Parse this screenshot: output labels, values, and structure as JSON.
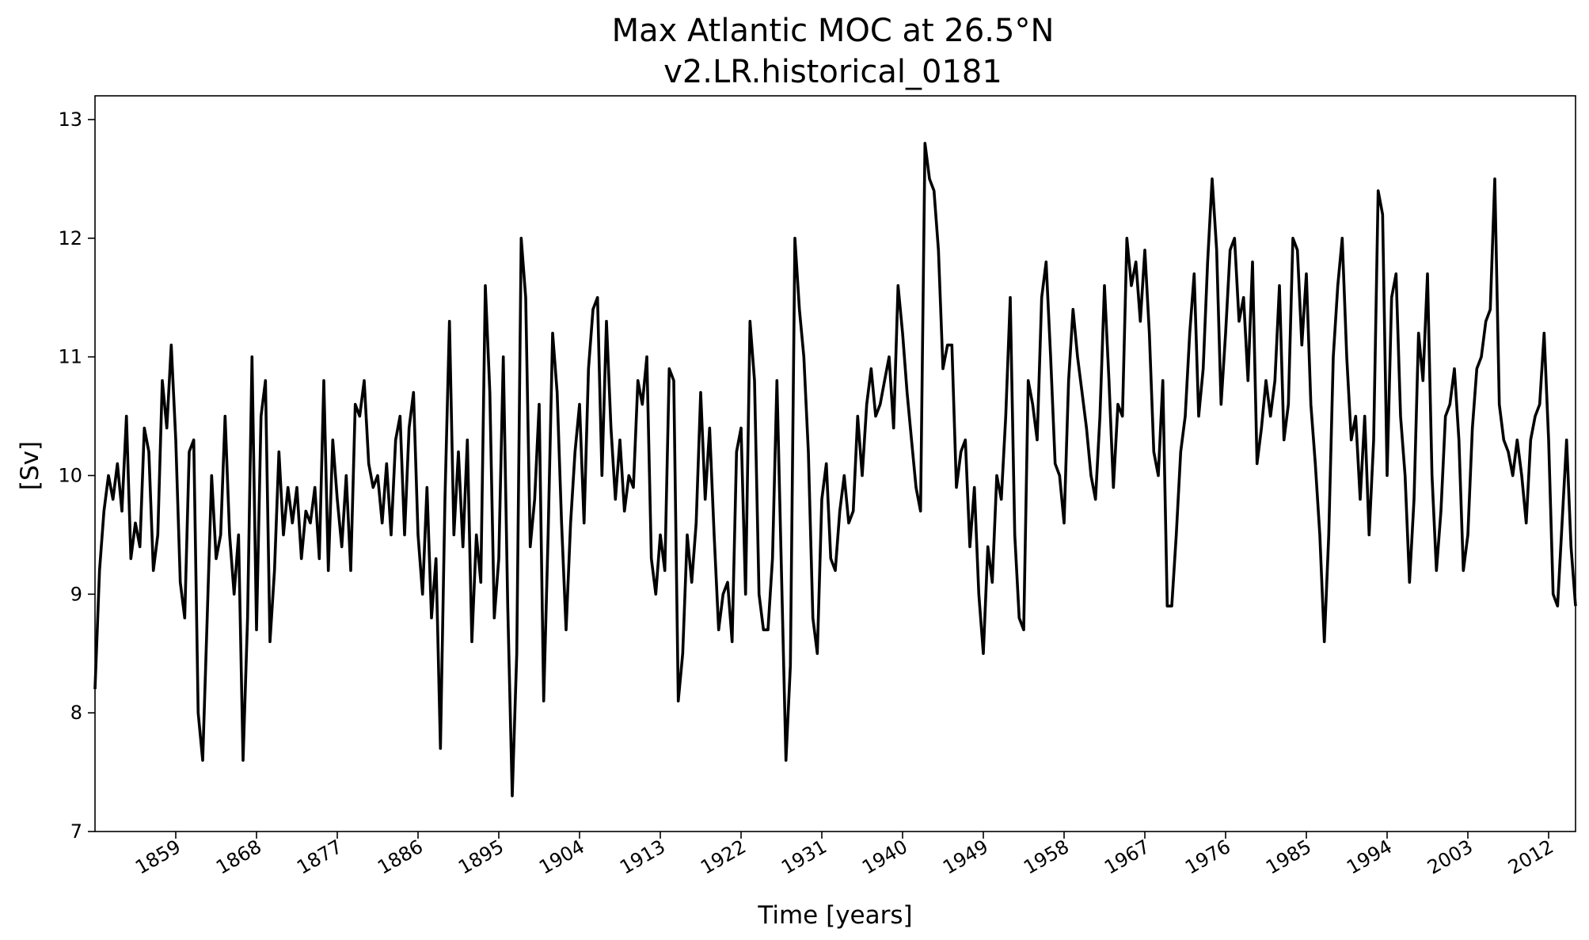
{
  "chart_data": {
    "type": "line",
    "title": "Max Atlantic MOC at 26.5°N",
    "subtitle": "v2.LR.historical_0181",
    "xlabel": "Time [years]",
    "ylabel": "[Sv]",
    "xlim": [
      1850,
      2015
    ],
    "ylim": [
      7,
      13.2
    ],
    "yticks": [
      7,
      8,
      9,
      10,
      11,
      12,
      13
    ],
    "xticks": [
      1859,
      1868,
      1877,
      1886,
      1895,
      1904,
      1913,
      1922,
      1931,
      1940,
      1949,
      1958,
      1967,
      1976,
      1985,
      1994,
      2003,
      2012
    ],
    "grid": false,
    "legend": "none",
    "line_color": "#000000",
    "series": [
      {
        "x": [
          1850.0,
          1850.5,
          1851.0,
          1851.5,
          1852.0,
          1852.5,
          1853.0,
          1853.5,
          1854.0,
          1854.5,
          1855.0,
          1855.5,
          1856.0,
          1856.5,
          1857.0,
          1857.5,
          1858.0,
          1858.5,
          1859.0,
          1859.5,
          1860.0,
          1860.5,
          1861.0,
          1861.5,
          1862.0,
          1862.5,
          1863.0,
          1863.5,
          1864.0,
          1864.5,
          1865.0,
          1865.5,
          1866.0,
          1866.5,
          1867.0,
          1867.5,
          1868.0,
          1868.5,
          1869.0,
          1869.5,
          1870.0,
          1870.5,
          1871.0,
          1871.5,
          1872.0,
          1872.5,
          1873.0,
          1873.5,
          1874.0,
          1874.5,
          1875.0,
          1875.5,
          1876.0,
          1876.5,
          1877.0,
          1877.5,
          1878.0,
          1878.5,
          1879.0,
          1879.5,
          1880.0,
          1880.5,
          1881.0,
          1881.5,
          1882.0,
          1882.5,
          1883.0,
          1883.5,
          1884.0,
          1884.5,
          1885.0,
          1885.5,
          1886.0,
          1886.5,
          1887.0,
          1887.5,
          1888.0,
          1888.5,
          1889.0,
          1889.5,
          1890.0,
          1890.5,
          1891.0,
          1891.5,
          1892.0,
          1892.5,
          1893.0,
          1893.5,
          1894.0,
          1894.5,
          1895.0,
          1895.5,
          1896.0,
          1896.5,
          1897.0,
          1897.5,
          1898.0,
          1898.5,
          1899.0,
          1899.5,
          1900.0,
          1900.5,
          1901.0,
          1901.5,
          1902.0,
          1902.5,
          1903.0,
          1903.5,
          1904.0,
          1904.5,
          1905.0,
          1905.5,
          1906.0,
          1906.5,
          1907.0,
          1907.5,
          1908.0,
          1908.5,
          1909.0,
          1909.5,
          1910.0,
          1910.5,
          1911.0,
          1911.5,
          1912.0,
          1912.5,
          1913.0,
          1913.5,
          1914.0,
          1914.5,
          1915.0,
          1915.5,
          1916.0,
          1916.5,
          1917.0,
          1917.5,
          1918.0,
          1918.5,
          1919.0,
          1919.5,
          1920.0,
          1920.5,
          1921.0,
          1921.5,
          1922.0,
          1922.5,
          1923.0,
          1923.5,
          1924.0,
          1924.5,
          1925.0,
          1925.5,
          1926.0,
          1926.5,
          1927.0,
          1927.5,
          1928.0,
          1928.5,
          1929.0,
          1929.5,
          1930.0,
          1930.5,
          1931.0,
          1931.5,
          1932.0,
          1932.5,
          1933.0,
          1933.5,
          1934.0,
          1934.5,
          1935.0,
          1935.5,
          1936.0,
          1936.5,
          1937.0,
          1937.5,
          1938.0,
          1938.5,
          1939.0,
          1939.5,
          1940.0,
          1940.5,
          1941.0,
          1941.5,
          1942.0,
          1942.5,
          1943.0,
          1943.5,
          1944.0,
          1944.5,
          1945.0,
          1945.5,
          1946.0,
          1946.5,
          1947.0,
          1947.5,
          1948.0,
          1948.5,
          1949.0,
          1949.5,
          1950.0,
          1950.5,
          1951.0,
          1951.5,
          1952.0,
          1952.5,
          1953.0,
          1953.5,
          1954.0,
          1954.5,
          1955.0,
          1955.5,
          1956.0,
          1956.5,
          1957.0,
          1957.5,
          1958.0,
          1958.5,
          1959.0,
          1959.5,
          1960.0,
          1960.5,
          1961.0,
          1961.5,
          1962.0,
          1962.5,
          1963.0,
          1963.5,
          1964.0,
          1964.5,
          1965.0,
          1965.5,
          1966.0,
          1966.5,
          1967.0,
          1967.5,
          1968.0,
          1968.5,
          1969.0,
          1969.5,
          1970.0,
          1970.5,
          1971.0,
          1971.5,
          1972.0,
          1972.5,
          1973.0,
          1973.5,
          1974.0,
          1974.5,
          1975.0,
          1975.5,
          1976.0,
          1976.5,
          1977.0,
          1977.5,
          1978.0,
          1978.5,
          1979.0,
          1979.5,
          1980.0,
          1980.5,
          1981.0,
          1981.5,
          1982.0,
          1982.5,
          1983.0,
          1983.5,
          1984.0,
          1984.5,
          1985.0,
          1985.5,
          1986.0,
          1986.5,
          1987.0,
          1987.5,
          1988.0,
          1988.5,
          1989.0,
          1989.5,
          1990.0,
          1990.5,
          1991.0,
          1991.5,
          1992.0,
          1992.5,
          1993.0,
          1993.5,
          1994.0,
          1994.5,
          1995.0,
          1995.5,
          1996.0,
          1996.5,
          1997.0,
          1997.5,
          1998.0,
          1998.5,
          1999.0,
          1999.5,
          2000.0,
          2000.5,
          2001.0,
          2001.5,
          2002.0,
          2002.5,
          2003.0,
          2003.5,
          2004.0,
          2004.5,
          2005.0,
          2005.5,
          2006.0,
          2006.5,
          2007.0,
          2007.5,
          2008.0,
          2008.5,
          2009.0,
          2009.5,
          2010.0,
          2010.5,
          2011.0,
          2011.5,
          2012.0,
          2012.5,
          2013.0,
          2013.5,
          2014.0,
          2014.5,
          2015.0
        ],
        "values": [
          8.2,
          9.2,
          9.7,
          10.0,
          9.8,
          10.1,
          9.7,
          10.5,
          9.3,
          9.6,
          9.4,
          10.4,
          10.2,
          9.2,
          9.5,
          10.8,
          10.4,
          11.1,
          10.3,
          9.1,
          8.8,
          10.2,
          10.3,
          8.0,
          7.6,
          8.8,
          10.0,
          9.3,
          9.5,
          10.5,
          9.5,
          9.0,
          9.5,
          7.6,
          8.8,
          11.0,
          8.7,
          10.5,
          10.8,
          8.6,
          9.2,
          10.2,
          9.5,
          9.9,
          9.6,
          9.9,
          9.3,
          9.7,
          9.6,
          9.9,
          9.3,
          10.8,
          9.2,
          10.3,
          9.8,
          9.4,
          10.0,
          9.2,
          10.6,
          10.5,
          10.8,
          10.1,
          9.9,
          10.0,
          9.6,
          10.1,
          9.5,
          10.3,
          10.5,
          9.5,
          10.4,
          10.7,
          9.5,
          9.0,
          9.9,
          8.8,
          9.3,
          7.7,
          9.8,
          11.3,
          9.5,
          10.2,
          9.4,
          10.3,
          8.6,
          9.5,
          9.1,
          11.6,
          10.7,
          8.8,
          9.3,
          11.0,
          8.9,
          7.3,
          8.5,
          12.0,
          11.5,
          9.4,
          9.8,
          10.6,
          8.1,
          9.5,
          11.2,
          10.7,
          9.6,
          8.7,
          9.6,
          10.2,
          10.6,
          9.6,
          10.9,
          11.4,
          11.5,
          10.0,
          11.3,
          10.4,
          9.8,
          10.3,
          9.7,
          10.0,
          9.9,
          10.8,
          10.6,
          11.0,
          9.3,
          9.0,
          9.5,
          9.2,
          10.9,
          10.8,
          8.1,
          8.5,
          9.5,
          9.1,
          9.6,
          10.7,
          9.8,
          10.4,
          9.5,
          8.7,
          9.0,
          9.1,
          8.6,
          10.2,
          10.4,
          9.0,
          11.3,
          10.8,
          9.0,
          8.7,
          8.7,
          9.3,
          10.8,
          9.2,
          7.6,
          8.4,
          12.0,
          11.4,
          11.0,
          10.2,
          8.8,
          8.5,
          9.8,
          10.1,
          9.3,
          9.2,
          9.7,
          10.0,
          9.6,
          9.7,
          10.5,
          10.0,
          10.6,
          10.9,
          10.5,
          10.6,
          10.8,
          11.0,
          10.4,
          11.6,
          11.2,
          10.7,
          10.3,
          9.9,
          9.7,
          12.8,
          12.5,
          12.4,
          11.9,
          10.9,
          11.1,
          11.1,
          9.9,
          10.2,
          10.3,
          9.4,
          9.9,
          9.0,
          8.5,
          9.4,
          9.1,
          10.0,
          9.8,
          10.5,
          11.5,
          9.5,
          8.8,
          8.7,
          10.8,
          10.6,
          10.3,
          11.5,
          11.8,
          11.0,
          10.1,
          10.0,
          9.6,
          10.8,
          11.4,
          11.0,
          10.7,
          10.4,
          10.0,
          9.8,
          10.5,
          11.6,
          10.8,
          9.9,
          10.6,
          10.5,
          12.0,
          11.6,
          11.8,
          11.3,
          11.9,
          11.2,
          10.2,
          10.0,
          10.8,
          8.9,
          8.9,
          9.5,
          10.2,
          10.5,
          11.2,
          11.7,
          10.5,
          10.9,
          11.8,
          12.5,
          11.9,
          10.6,
          11.2,
          11.9,
          12.0,
          11.3,
          11.5,
          10.8,
          11.8,
          10.1,
          10.4,
          10.8,
          10.5,
          10.8,
          11.6,
          10.3,
          10.6,
          12.0,
          11.9,
          11.1,
          11.7,
          10.6,
          10.1,
          9.5,
          8.6,
          9.5,
          11.0,
          11.6,
          12.0,
          11.0,
          10.3,
          10.5,
          9.8,
          10.5,
          9.5,
          10.3,
          12.4,
          12.2,
          10.0,
          11.5,
          11.7,
          10.5,
          10.0,
          9.1,
          9.8,
          11.2,
          10.8,
          11.7,
          10.0,
          9.2,
          9.7,
          10.5,
          10.6,
          10.9,
          10.3,
          9.2,
          9.5,
          10.4,
          10.9,
          11.0,
          11.3,
          11.4,
          12.5,
          10.6,
          10.3,
          10.2,
          10.0,
          10.3,
          10.0,
          9.6,
          10.3,
          10.5,
          10.6,
          11.2,
          10.3,
          9.0,
          8.9,
          9.6,
          10.3,
          9.4,
          8.9
        ]
      }
    ]
  }
}
